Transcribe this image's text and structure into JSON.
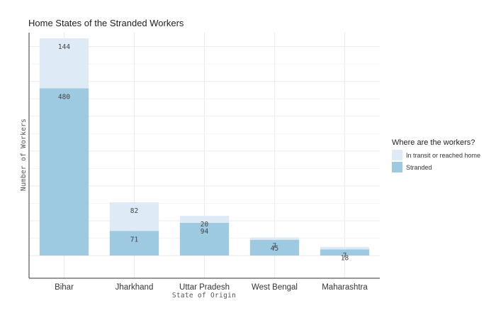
{
  "chart_data": {
    "type": "bar",
    "stacked": true,
    "title": "Home States of the Stranded Workers",
    "xlabel": "State of Origin",
    "ylabel": "Number of Workers",
    "categories": [
      "Bihar",
      "Jharkhand",
      "Uttar Pradesh",
      "West Bengal",
      "Maharashtra"
    ],
    "series": [
      {
        "name": "Stranded",
        "color": "#9ecae1",
        "values": [
          480,
          71,
          94,
          45,
          18
        ]
      },
      {
        "name": "In transit or reached home",
        "color": "#deebf7",
        "values": [
          144,
          82,
          20,
          7,
          7
        ]
      }
    ],
    "ylim": [
      -65,
      640
    ],
    "legend": {
      "title": "Where are the workers?",
      "position": "right",
      "items": [
        {
          "label": "In transit or reached home",
          "color": "#deebf7"
        },
        {
          "label": "Stranded",
          "color": "#9ecae1"
        }
      ]
    }
  }
}
